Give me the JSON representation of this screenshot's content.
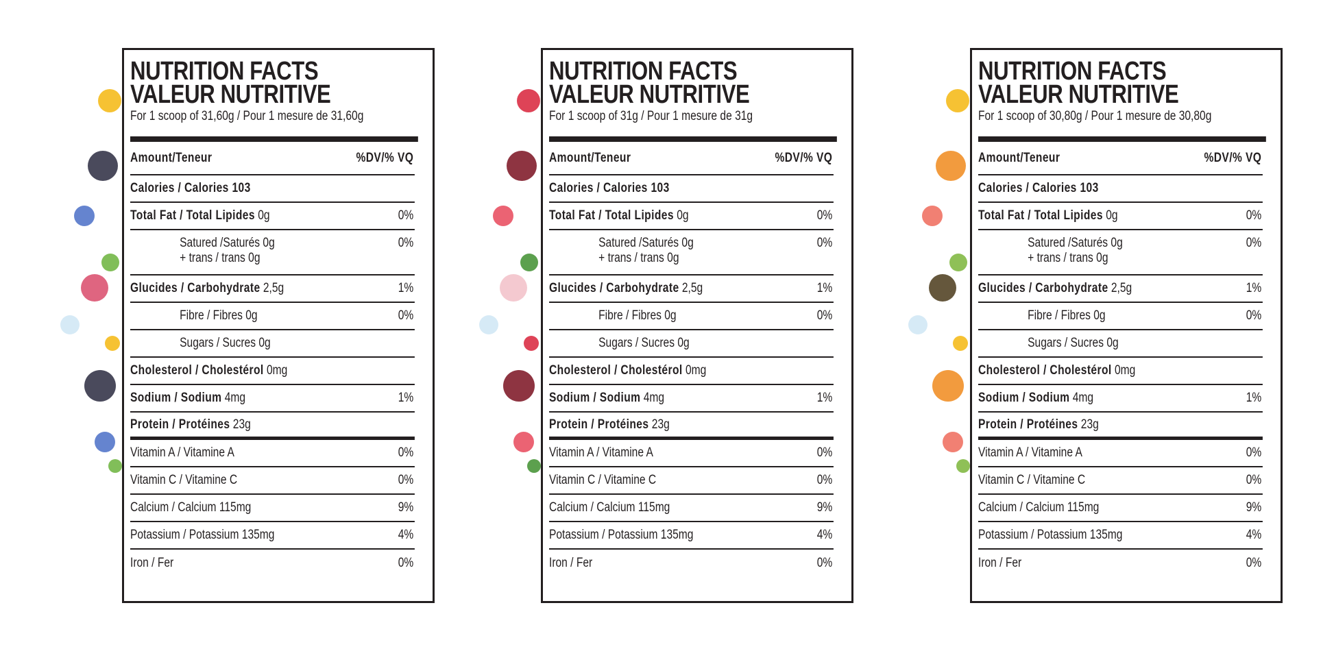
{
  "labels": [
    {
      "title_en": "NUTRITION FACTS",
      "title_fr": "VALEUR NUTRITIVE",
      "serving": "For 1 scoop of 31,60g / Pour 1 mesure de 31,60g",
      "accent_colors": [
        "#f5b70f",
        "#2a2a40",
        "#4a6fc7",
        "#6bb33c",
        "#d94a6a",
        "#cfe6f5"
      ]
    },
    {
      "title_en": "NUTRITION FACTS",
      "title_fr": "VALEUR NUTRITIVE",
      "serving": "For 1 scoop of 31g / Pour 1 mesure de 31g",
      "accent_colors": [
        "#d8223a",
        "#7a1020",
        "#e8485a",
        "#3f8f2f",
        "#f2c0c8",
        "#cfe6f5"
      ]
    },
    {
      "title_en": "NUTRITION FACTS",
      "title_fr": "VALEUR NUTRITIVE",
      "serving": "For 1 scoop of 30,80g / Pour 1 mesure de 30,80g",
      "accent_colors": [
        "#f5b70f",
        "#f08a1c",
        "#ef6a5a",
        "#7bb53a",
        "#4a3a1a",
        "#cfe6f5"
      ]
    }
  ],
  "rows": [
    {
      "type": "head",
      "bold": "Amount/Teneur",
      "text": "",
      "dv": "%DV/% VQ"
    },
    {
      "bold": "Calories / Calories 103",
      "text": "",
      "dv": ""
    },
    {
      "bold": "Total Fat / Total Lipides",
      "text": " 0g",
      "dv": "0%"
    },
    {
      "indent": true,
      "text": "Satured /Saturés 0g",
      "text2": "+ trans / trans 0g",
      "dv": "0%"
    },
    {
      "bold": "Glucides / Carbohydrate",
      "text": " 2,5g",
      "dv": "1%"
    },
    {
      "indent": true,
      "text": "Fibre / Fibres 0g",
      "dv": "0%"
    },
    {
      "indent": true,
      "text": "Sugars / Sucres 0g",
      "dv": ""
    },
    {
      "bold": "Cholesterol / Cholestérol",
      "text": " 0mg",
      "dv": ""
    },
    {
      "bold": "Sodium / Sodium",
      "text": " 4mg",
      "dv": "1%"
    },
    {
      "bold": "Protein / Protéines",
      "text": " 23g",
      "dv": "",
      "thick": true
    },
    {
      "text": "Vitamin A / Vitamine A",
      "dv": "0%"
    },
    {
      "text": "Vitamin C / Vitamine C",
      "dv": "0%"
    },
    {
      "text": "Calcium / Calcium 115mg",
      "dv": "9%"
    },
    {
      "text": "Potassium / Potassium 135mg",
      "dv": "4%"
    },
    {
      "text": "Iron / Fer",
      "dv": "0%",
      "last": true
    }
  ]
}
